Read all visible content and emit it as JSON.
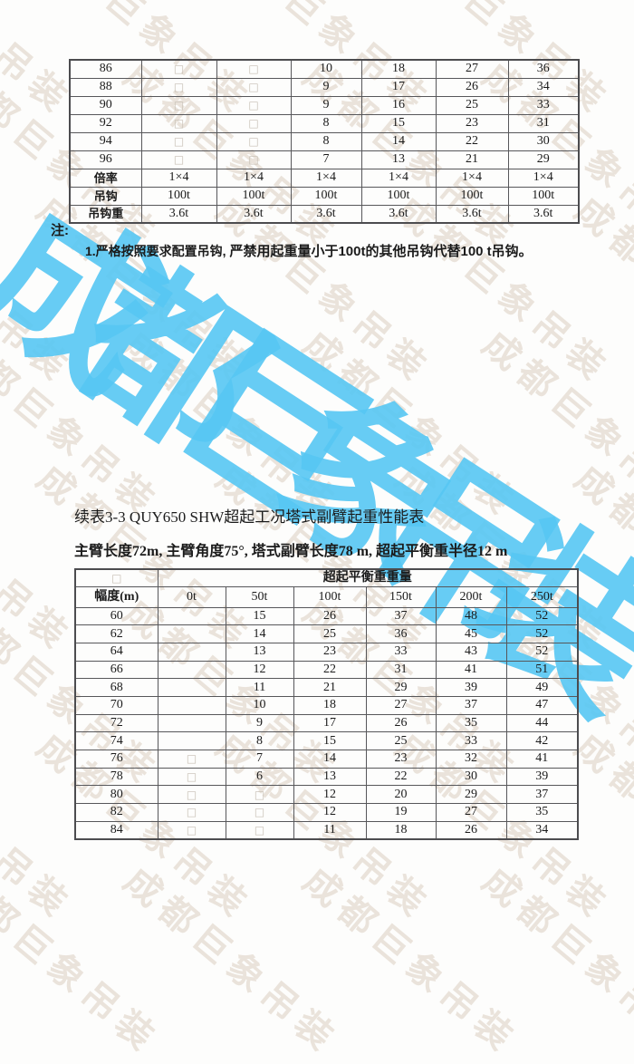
{
  "watermark": {
    "text": "成都巨象吊装",
    "big_color": "rgba(86,198,243,0.9)",
    "small_color": "rgba(186,158,128,0.27)"
  },
  "note": {
    "label": "注:",
    "item1_part1": "1.严格按照要求配置吊钩, ",
    "item1_part2": "严禁用起重量小于100t的其他吊钩代替100 t吊钩。"
  },
  "section": {
    "title": "续表3-3 QUY650 SHW超起工况塔式副臂起重性能表",
    "subtitle": "主臂长度72m, 主臂角度75°, 塔式副臂长度78 m, 超起平衡重半径12 m"
  },
  "table1": {
    "rows": [
      {
        "label": "86",
        "cells": [
          "□",
          "□",
          "10",
          "18",
          "27",
          "36"
        ]
      },
      {
        "label": "88",
        "cells": [
          "□",
          "□",
          "9",
          "17",
          "26",
          "34"
        ]
      },
      {
        "label": "90",
        "cells": [
          "□",
          "□",
          "9",
          "16",
          "25",
          "33"
        ]
      },
      {
        "label": "92",
        "cells": [
          "□",
          "□",
          "8",
          "15",
          "23",
          "31"
        ]
      },
      {
        "label": "94",
        "cells": [
          "□",
          "□",
          "8",
          "14",
          "22",
          "30"
        ]
      },
      {
        "label": "96",
        "cells": [
          "□",
          "□",
          "7",
          "13",
          "21",
          "29"
        ]
      },
      {
        "label": "倍率",
        "cells": [
          "1×4",
          "1×4",
          "1×4",
          "1×4",
          "1×4",
          "1×4"
        ]
      },
      {
        "label": "吊钩",
        "cells": [
          "100t",
          "100t",
          "100t",
          "100t",
          "100t",
          "100t"
        ]
      },
      {
        "label": "吊钩重",
        "cells": [
          "3.6t",
          "3.6t",
          "3.6t",
          "3.6t",
          "3.6t",
          "3.6t"
        ]
      }
    ]
  },
  "table2": {
    "corner": "□",
    "span_header": "超起平衡重重量",
    "col_headers": [
      "幅度(m)",
      "0t",
      "50t",
      "100t",
      "150t",
      "200t",
      "250t"
    ],
    "rows": [
      {
        "label": "60",
        "cells": [
          "",
          "15",
          "26",
          "37",
          "48",
          "52"
        ]
      },
      {
        "label": "62",
        "cells": [
          "",
          "14",
          "25",
          "36",
          "45",
          "52"
        ]
      },
      {
        "label": "64",
        "cells": [
          "",
          "13",
          "23",
          "33",
          "43",
          "52"
        ]
      },
      {
        "label": "66",
        "cells": [
          "",
          "12",
          "22",
          "31",
          "41",
          "51"
        ]
      },
      {
        "label": "68",
        "cells": [
          "",
          "11",
          "21",
          "29",
          "39",
          "49"
        ]
      },
      {
        "label": "70",
        "cells": [
          "",
          "10",
          "18",
          "27",
          "37",
          "47"
        ]
      },
      {
        "label": "72",
        "cells": [
          "",
          "9",
          "17",
          "26",
          "35",
          "44"
        ]
      },
      {
        "label": "74",
        "cells": [
          "",
          "8",
          "15",
          "25",
          "33",
          "42"
        ]
      },
      {
        "label": "76",
        "cells": [
          "□",
          "7",
          "14",
          "23",
          "32",
          "41"
        ]
      },
      {
        "label": "78",
        "cells": [
          "□",
          "6",
          "13",
          "22",
          "30",
          "39"
        ]
      },
      {
        "label": "80",
        "cells": [
          "□",
          "□",
          "12",
          "20",
          "29",
          "37"
        ]
      },
      {
        "label": "82",
        "cells": [
          "□",
          "□",
          "12",
          "19",
          "27",
          "35"
        ]
      },
      {
        "label": "84",
        "cells": [
          "□",
          "□",
          "11",
          "18",
          "26",
          "34"
        ]
      }
    ]
  }
}
